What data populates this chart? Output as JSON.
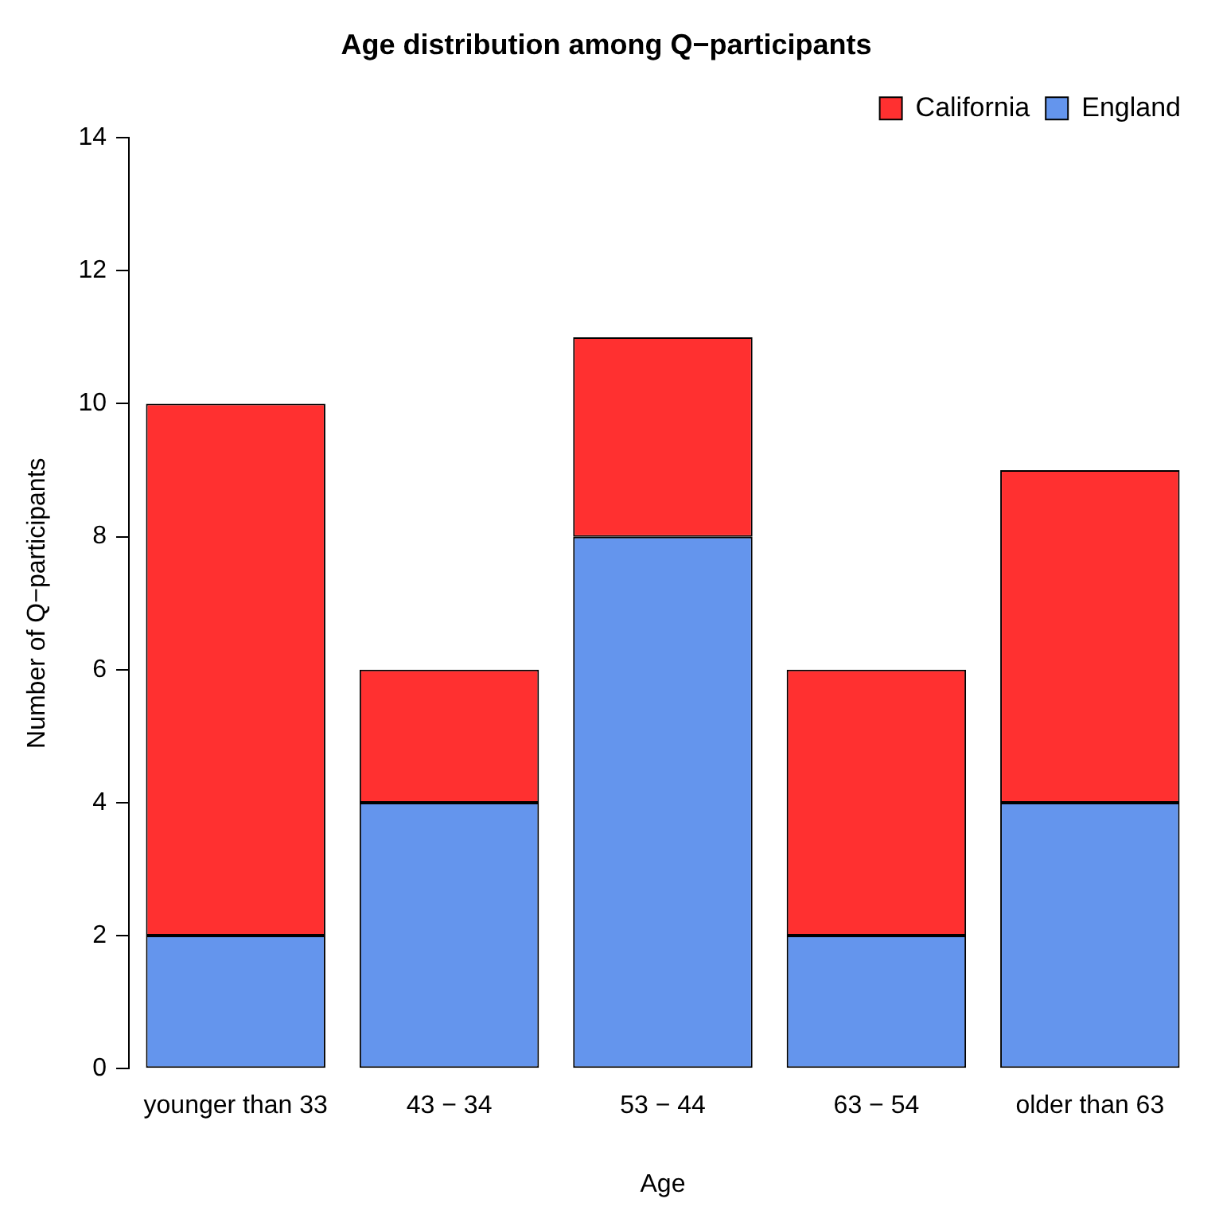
{
  "chart_data": {
    "type": "bar",
    "title": "Age distribution among Q−participants",
    "xlabel": "Age",
    "ylabel": "Number of Q−participants",
    "categories": [
      "younger than 33",
      "43 − 34",
      "53 − 44",
      "63 − 54",
      "older than 63"
    ],
    "series": [
      {
        "name": "England",
        "color": "#6495ed",
        "values": [
          2,
          4,
          8,
          2,
          4
        ]
      },
      {
        "name": "California",
        "color": "#ff3030",
        "values": [
          8,
          2,
          3,
          4,
          5
        ]
      }
    ],
    "stacked": true,
    "ylim": [
      0,
      14
    ],
    "yticks": [
      0,
      2,
      4,
      6,
      8,
      10,
      12,
      14
    ],
    "grid": false,
    "legend": "top right"
  }
}
